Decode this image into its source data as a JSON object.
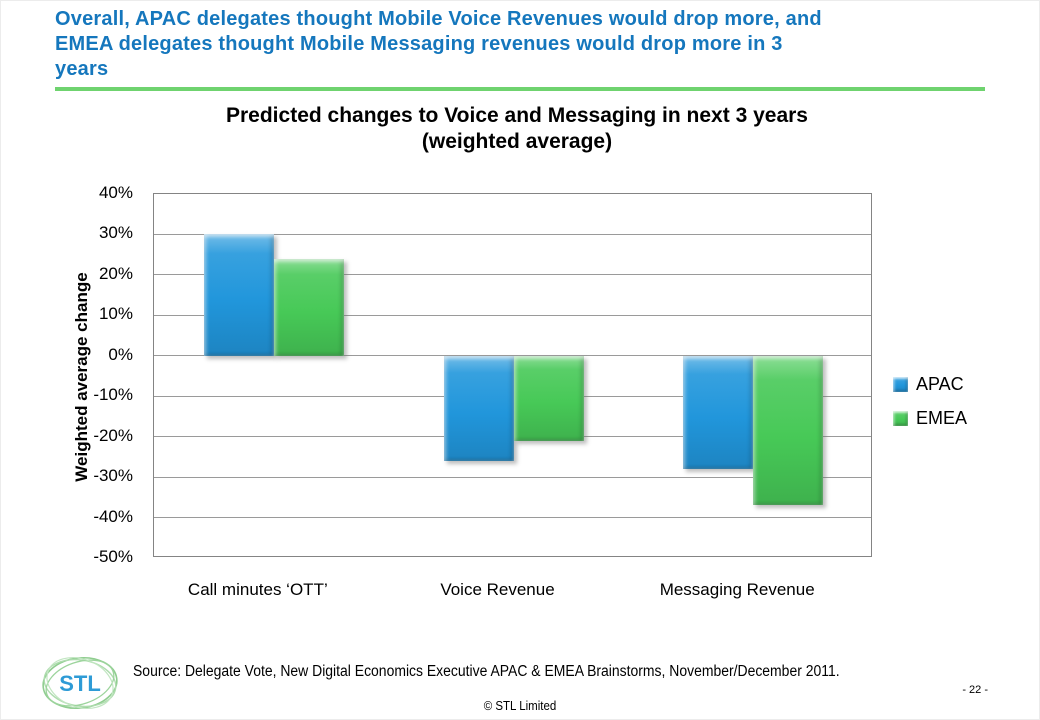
{
  "slide": {
    "title_lines": [
      "Overall, APAC delegates thought Mobile Voice Revenues would drop more, and",
      "EMEA delegates thought Mobile Messaging revenues would drop more in 3",
      "years"
    ],
    "title_color": "#1577BD",
    "divider_color": "#6FD36F"
  },
  "chart_data": {
    "type": "bar",
    "title": "Predicted changes to Voice and Messaging in next 3 years",
    "subtitle": "(weighted average)",
    "ylabel": "Weighted average change",
    "xlabel": "",
    "categories": [
      "Call minutes ‘OTT’",
      "Voice Revenue",
      "Messaging Revenue"
    ],
    "series": [
      {
        "name": "APAC",
        "color": "#2196DB",
        "values": [
          30,
          -26,
          -28
        ]
      },
      {
        "name": "EMEA",
        "color": "#47C957",
        "values": [
          24,
          -21,
          -37
        ]
      }
    ],
    "unit": "%",
    "ylim": [
      -50,
      40
    ],
    "y_ticks": [
      "40%",
      "30%",
      "20%",
      "10%",
      "0%",
      "-10%",
      "-20%",
      "-30%",
      "-40%",
      "-50%"
    ],
    "grid": true,
    "legend_position": "right"
  },
  "footer": {
    "logo_text": "STL",
    "logo_text_color": "#2E9BD6",
    "logo_ring_color": "#8FCD8F",
    "source": "Source: Delegate Vote, New Digital Economics Executive APAC & EMEA Brainstorms, November/December 2011.",
    "copyright": "© STL Limited",
    "page_number": "- 22 -"
  }
}
